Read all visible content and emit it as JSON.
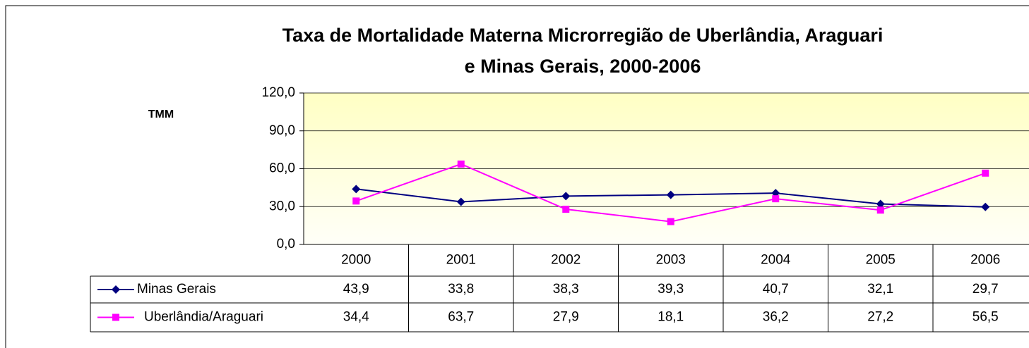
{
  "chart_data": {
    "type": "line",
    "title": "Taxa de Mortalidade Materna   Microrregião de   Uberlândia, Araguari",
    "subtitle": "e  Minas Gerais, 2000-2006",
    "y_label": "TMM",
    "categories": [
      "2000",
      "2001",
      "2002",
      "2003",
      "2004",
      "2005",
      "2006"
    ],
    "series": [
      {
        "name": "Minas Gerais",
        "color": "#000080",
        "marker": "diamond",
        "values": [
          43.9,
          33.8,
          38.3,
          39.3,
          40.7,
          32.1,
          29.7
        ],
        "value_labels": [
          "43,9",
          "33,8",
          "38,3",
          "39,3",
          "40,7",
          "32,1",
          "29,7"
        ]
      },
      {
        "name": "Uberlândia/Araguari",
        "color": "#ff00ff",
        "marker": "square",
        "values": [
          34.4,
          63.7,
          27.9,
          18.1,
          36.2,
          27.2,
          56.5
        ],
        "value_labels": [
          "34,4",
          "63,7",
          "27,9",
          "18,1",
          "36,2",
          "27,2",
          "56,5"
        ]
      }
    ],
    "ylim": [
      0,
      120
    ],
    "yticks": [
      {
        "value": 0,
        "label": "0,0"
      },
      {
        "value": 30,
        "label": "30,0"
      },
      {
        "value": 60,
        "label": "60,0"
      },
      {
        "value": 90,
        "label": "90,0"
      },
      {
        "value": 120,
        "label": "120,0"
      }
    ],
    "grid": true
  }
}
